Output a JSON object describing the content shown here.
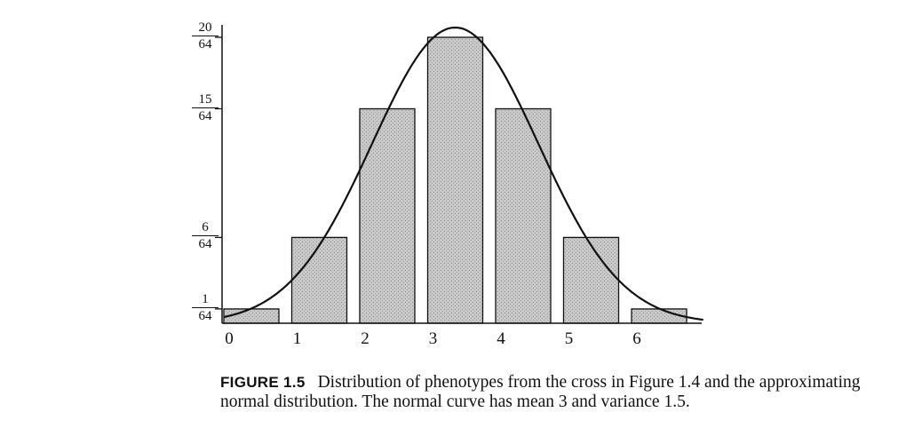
{
  "chart_data": {
    "type": "bar",
    "categories": [
      "0",
      "1",
      "2",
      "3",
      "4",
      "5",
      "6"
    ],
    "values": [
      1,
      6,
      15,
      20,
      15,
      6,
      1
    ],
    "value_denominator": 64,
    "ylim": [
      0,
      20
    ],
    "yticks": [
      {
        "value": 1,
        "num": "1",
        "den": "64"
      },
      {
        "value": 6,
        "num": "6",
        "den": "64"
      },
      {
        "value": 15,
        "num": "15",
        "den": "64"
      },
      {
        "value": 20,
        "num": "20",
        "den": "64"
      }
    ],
    "overlay_curve": {
      "type": "normal",
      "mean": 3,
      "variance": 1.5
    },
    "grid": false,
    "bar_color": "#c4c4c4",
    "title": "",
    "xlabel": "",
    "ylabel": ""
  },
  "caption": {
    "label": "FIGURE 1.5",
    "text": "Distribution of phenotypes from the cross in Figure 1.4 and the approximating normal distribution. The normal curve has mean 3 and variance 1.5."
  }
}
